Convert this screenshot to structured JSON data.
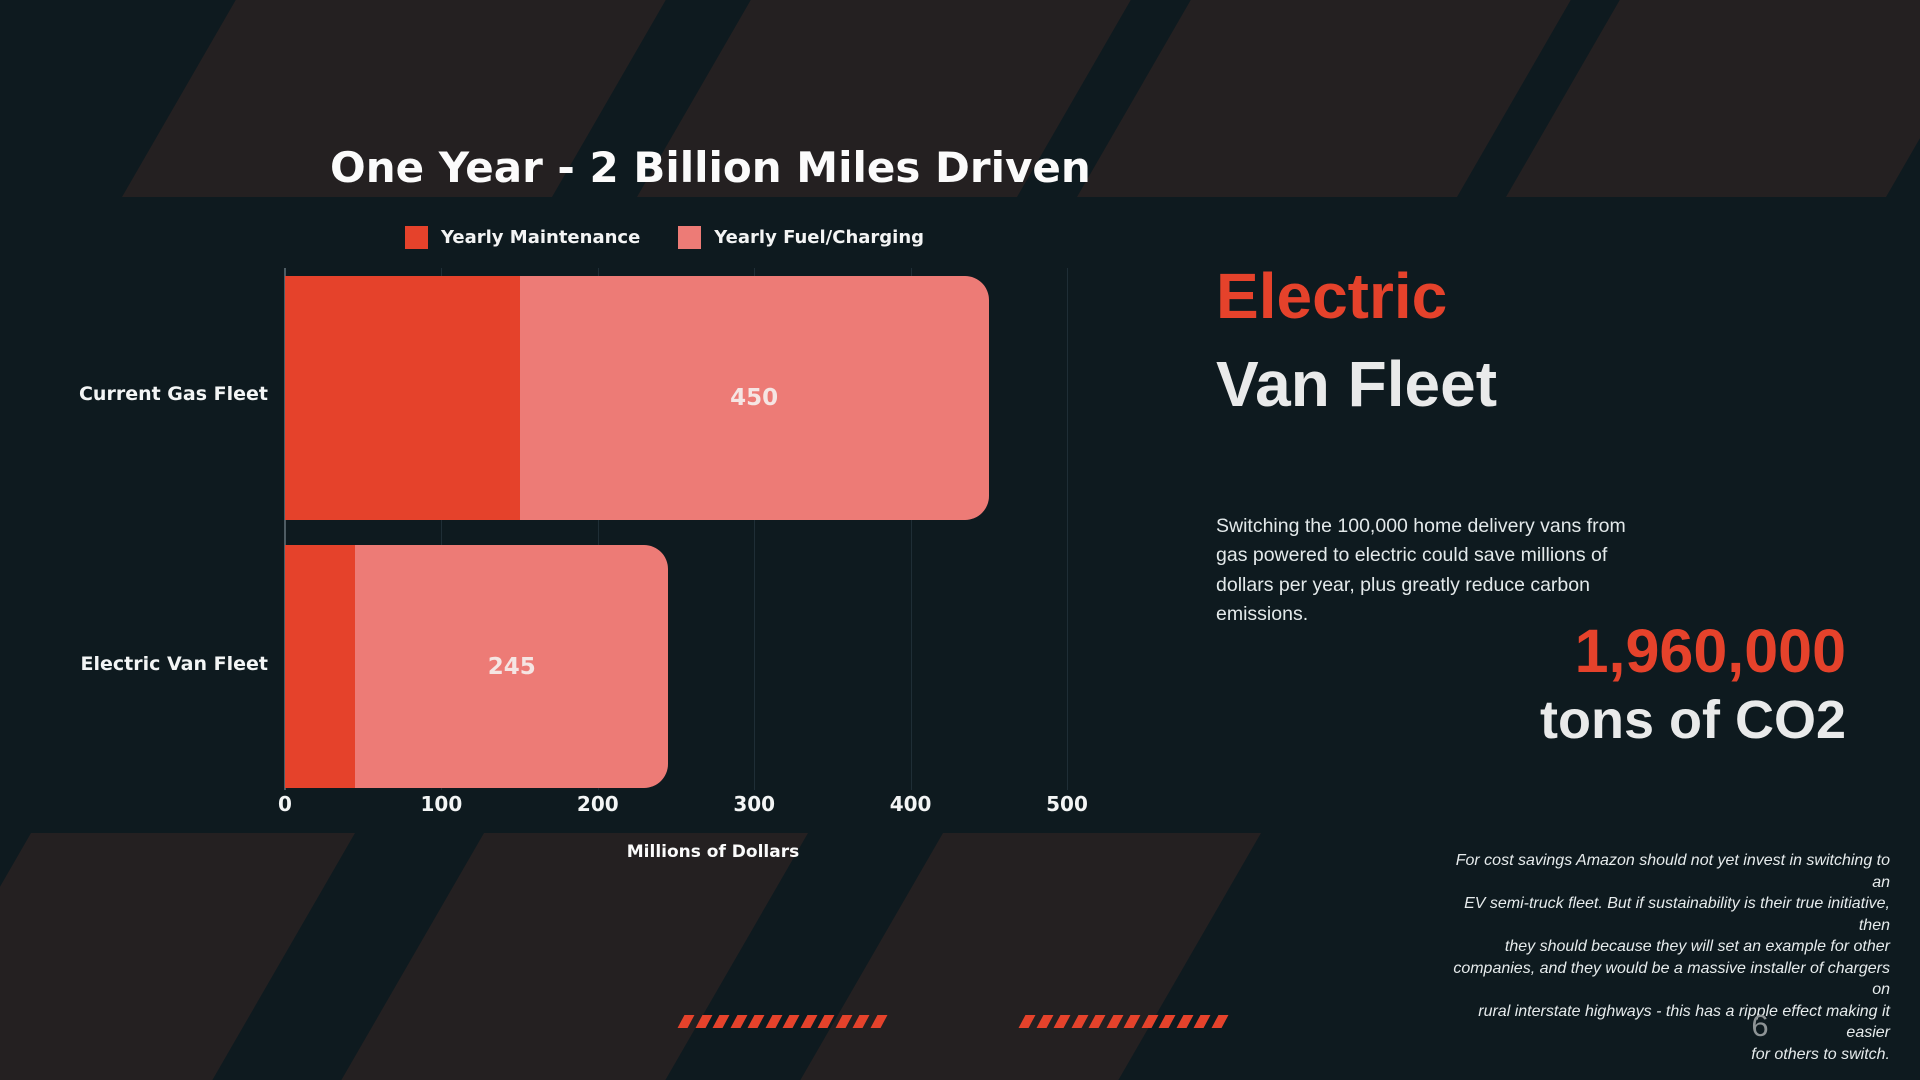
{
  "slide": {
    "page_number": "6"
  },
  "chart": {
    "title": "One Year - 2 Billion Miles Driven",
    "xlabel": "Millions of Dollars",
    "legend": [
      {
        "label": "Yearly Maintenance",
        "color": "#e5422b"
      },
      {
        "label": "Yearly Fuel/Charging",
        "color": "#ed7b76"
      }
    ]
  },
  "chart_data": {
    "type": "bar",
    "orientation": "horizontal",
    "stacked": true,
    "title": "One Year - 2 Billion Miles Driven",
    "xlabel": "Millions of Dollars",
    "categories": [
      "Current Gas Fleet",
      "Electric Van Fleet"
    ],
    "series": [
      {
        "name": "Yearly Maintenance",
        "color": "#e5422b",
        "values": [
          150,
          45
        ]
      },
      {
        "name": "Yearly Fuel/Charging",
        "color": "#ed7b76",
        "values": [
          300,
          200
        ]
      }
    ],
    "bar_total_labels": [
      "450",
      "245"
    ],
    "xlim": [
      0,
      500
    ],
    "x_ticks": [
      0,
      100,
      200,
      300,
      400,
      500
    ],
    "grid": true,
    "legend_position": "top"
  },
  "right_panel": {
    "heading_line1": "Electric",
    "heading_line2": "Van Fleet",
    "body": "Switching the 100,000 home delivery vans from\ngas powered to electric could save millions of\ndollars per year, plus greatly reduce carbon\nemissions.",
    "stat_value": "1,960,000",
    "stat_label": "tons of CO2",
    "footnote": "For cost savings Amazon should not yet invest in switching to an\nEV semi-truck fleet. But if sustainability is their true initiative, then\nthey should because they will set an example for other\ncompanies, and they would be a massive installer of chargers on\nrural interstate highways - this has a ripple effect making it easier\nfor others to switch."
  },
  "decor": {
    "dash_groups": 2,
    "dashes_per_group": 12
  },
  "colors": {
    "background": "#0e1a1f",
    "stripe": "#242021",
    "accent_red": "#e5422b",
    "accent_salmon": "#ed7b76"
  }
}
